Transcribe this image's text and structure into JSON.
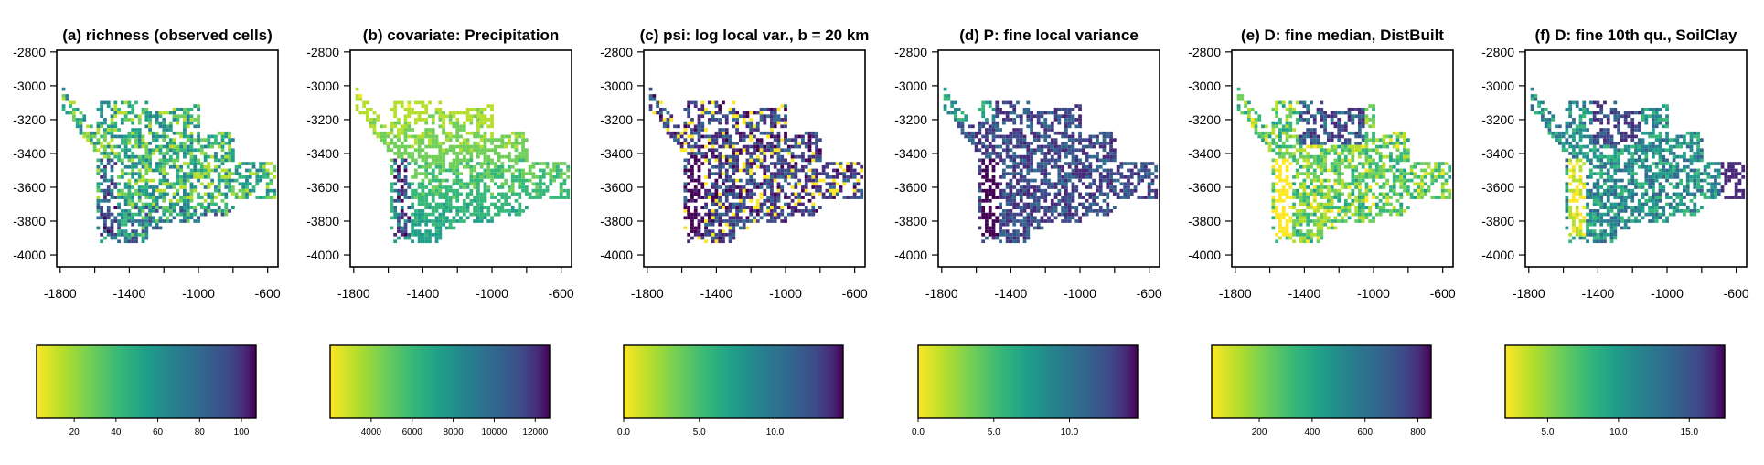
{
  "chart_data": [
    {
      "type": "heatmap",
      "title": "(a) richness (observed cells)",
      "xlabel": "",
      "ylabel": "",
      "xlim": [
        -1820,
        -540
      ],
      "ylim": [
        -4070,
        -2790
      ],
      "xticks": [
        -1800,
        -1400,
        -1000,
        -600
      ],
      "yticks": [
        -2800,
        -3000,
        -3200,
        -3400,
        -3600,
        -3800,
        -4000
      ],
      "colormap": "viridis-reversed",
      "colorbar": {
        "min": 2,
        "max": 107,
        "ticks": [
          20,
          40,
          60,
          80,
          100
        ],
        "tick_labels": [
          "20",
          "40",
          "60",
          "80",
          "100"
        ]
      },
      "pattern": "mixed"
    },
    {
      "type": "heatmap",
      "title": "(b) covariate: Precipitation",
      "xlabel": "",
      "ylabel": "",
      "xlim": [
        -1820,
        -540
      ],
      "ylim": [
        -4070,
        -2790
      ],
      "xticks": [
        -1800,
        -1400,
        -1000,
        -600
      ],
      "yticks": [
        -2800,
        -3000,
        -3200,
        -3400,
        -3600,
        -3800,
        -4000
      ],
      "colormap": "viridis-reversed",
      "colorbar": {
        "min": 2000,
        "max": 12700,
        "ticks": [
          4000,
          6000,
          8000,
          10000,
          12000
        ],
        "tick_labels": [
          "4000",
          "6000",
          "8000",
          "10000",
          "12000"
        ]
      },
      "pattern": "precip"
    },
    {
      "type": "heatmap",
      "title": "(c) psi: log local var., b = 20 km",
      "xlabel": "",
      "ylabel": "",
      "xlim": [
        -1820,
        -540
      ],
      "ylim": [
        -4070,
        -2790
      ],
      "xticks": [
        -1800,
        -1400,
        -1000,
        -600
      ],
      "yticks": [
        -2800,
        -3000,
        -3200,
        -3400,
        -3600,
        -3800,
        -4000
      ],
      "colormap": "viridis-reversed",
      "colorbar": {
        "min": 0,
        "max": 14.5,
        "ticks": [
          0,
          5,
          10
        ],
        "tick_labels": [
          "0.0",
          "5.0",
          "10.0"
        ]
      },
      "pattern": "dark"
    },
    {
      "type": "heatmap",
      "title": "(d) P: fine local variance",
      "xlabel": "",
      "ylabel": "",
      "xlim": [
        -1820,
        -540
      ],
      "ylim": [
        -4070,
        -2790
      ],
      "xticks": [
        -1800,
        -1400,
        -1000,
        -600
      ],
      "yticks": [
        -2800,
        -3000,
        -3200,
        -3400,
        -3600,
        -3800,
        -4000
      ],
      "colormap": "viridis-reversed",
      "colorbar": {
        "min": 0,
        "max": 14.5,
        "ticks": [
          0,
          5,
          10
        ],
        "tick_labels": [
          "0.0",
          "5.0",
          "10.0"
        ]
      },
      "pattern": "dark2"
    },
    {
      "type": "heatmap",
      "title": "(e) D: fine median, DistBuilt",
      "xlabel": "",
      "ylabel": "",
      "xlim": [
        -1820,
        -540
      ],
      "ylim": [
        -4070,
        -2790
      ],
      "xticks": [
        -1800,
        -1400,
        -1000,
        -600
      ],
      "yticks": [
        -2800,
        -3000,
        -3200,
        -3400,
        -3600,
        -3800,
        -4000
      ],
      "colormap": "viridis-reversed",
      "colorbar": {
        "min": 20,
        "max": 850,
        "ticks": [
          200,
          400,
          600,
          800
        ],
        "tick_labels": [
          "200",
          "400",
          "600",
          "800"
        ]
      },
      "pattern": "distbuilt"
    },
    {
      "type": "heatmap",
      "title": "(f) D: fine 10th qu., SoilClay",
      "xlabel": "",
      "ylabel": "",
      "xlim": [
        -1820,
        -540
      ],
      "ylim": [
        -4070,
        -2790
      ],
      "xticks": [
        -1800,
        -1400,
        -1000,
        -600
      ],
      "yticks": [
        -2800,
        -3000,
        -3200,
        -3400,
        -3600,
        -3800,
        -4000
      ],
      "colormap": "viridis-reversed",
      "colorbar": {
        "min": 2,
        "max": 17.5,
        "ticks": [
          5,
          10,
          15
        ],
        "tick_labels": [
          "5.0",
          "10.0",
          "15.0"
        ]
      },
      "pattern": "soilclay"
    }
  ]
}
